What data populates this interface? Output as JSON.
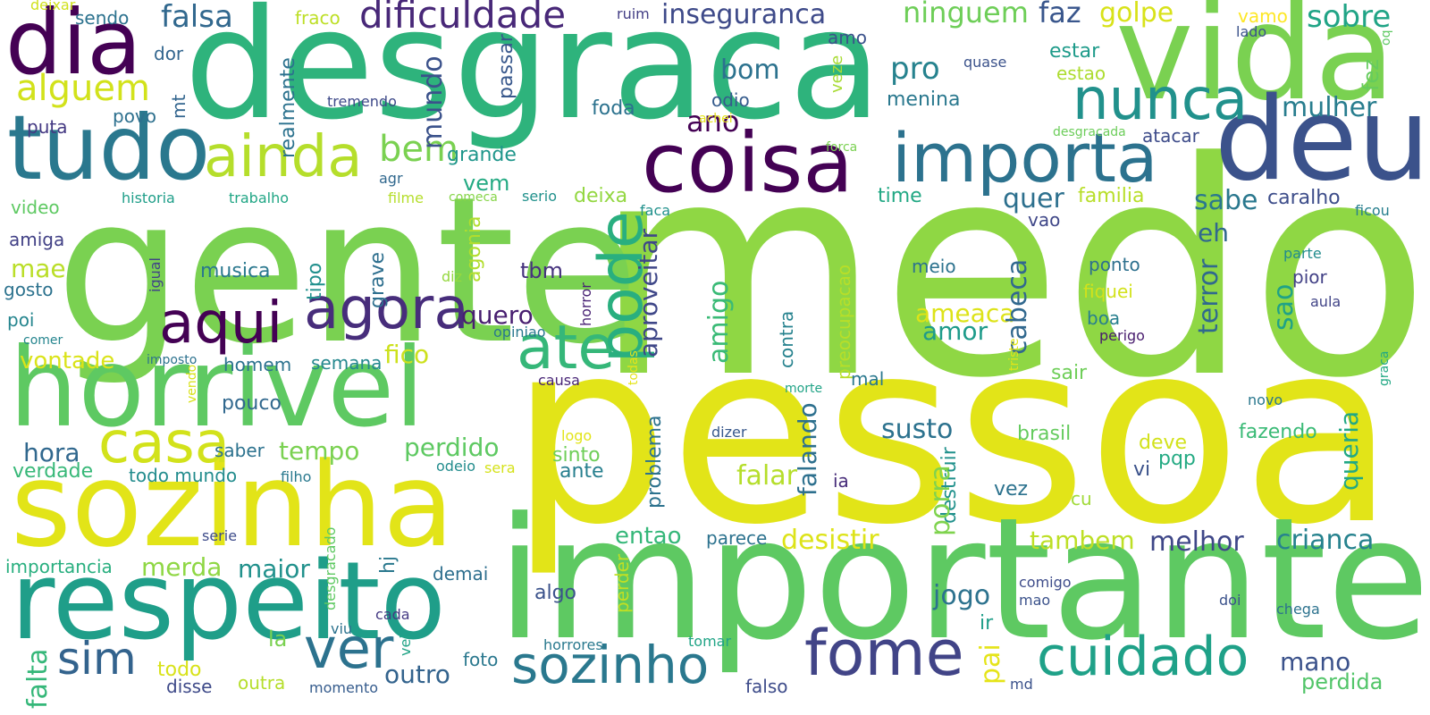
{
  "word_cloud": {
    "words": [
      {
        "text": "desgraca",
        "color": "#2eb37c"
      },
      {
        "text": "medo",
        "color": "#8fd744"
      },
      {
        "text": "pessoa",
        "color": "#e2e418"
      },
      {
        "text": "gente",
        "color": "#7ad151"
      },
      {
        "text": "importante",
        "color": "#5ec962"
      },
      {
        "text": "vida",
        "color": "#7ad151"
      },
      {
        "text": "dia",
        "color": "#440154"
      },
      {
        "text": "deu",
        "color": "#3b528b"
      },
      {
        "text": "horrivel",
        "color": "#5ec962"
      },
      {
        "text": "sozinha",
        "color": "#e2e418"
      },
      {
        "text": "respeito",
        "color": "#1f9e89"
      },
      {
        "text": "tudo",
        "color": "#2a788e"
      },
      {
        "text": "coisa",
        "color": "#440154"
      },
      {
        "text": "importa",
        "color": "#2c728e"
      },
      {
        "text": "nunca",
        "color": "#21918c"
      },
      {
        "text": "ainda",
        "color": "#b5de2b"
      },
      {
        "text": "agora",
        "color": "#472d7b"
      },
      {
        "text": "aqui",
        "color": "#440154"
      },
      {
        "text": "casa",
        "color": "#d2e21b"
      },
      {
        "text": "ate",
        "color": "#35b779"
      },
      {
        "text": "pode",
        "color": "#29af7f"
      },
      {
        "text": "fome",
        "color": "#414487"
      },
      {
        "text": "cuidado",
        "color": "#1fa188"
      },
      {
        "text": "sozinho",
        "color": "#2a788e"
      },
      {
        "text": "ver",
        "color": "#2c728e"
      },
      {
        "text": "sim",
        "color": "#33638d"
      },
      {
        "text": "dificuldade",
        "color": "#482878"
      },
      {
        "text": "inseguranca",
        "color": "#3e4a89"
      },
      {
        "text": "alguem",
        "color": "#d2e21b"
      },
      {
        "text": "bem",
        "color": "#7ad151"
      },
      {
        "text": "falsa",
        "color": "#31688e"
      },
      {
        "text": "ninguem",
        "color": "#6ece58"
      },
      {
        "text": "faz",
        "color": "#39568c"
      },
      {
        "text": "golpe",
        "color": "#d8e219"
      },
      {
        "text": "sobre",
        "color": "#20a486"
      },
      {
        "text": "vamo",
        "color": "#fde725"
      },
      {
        "text": "deixar",
        "color": "#d0e11c"
      },
      {
        "text": "sendo",
        "color": "#2c728e"
      },
      {
        "text": "fraco",
        "color": "#bddf26"
      },
      {
        "text": "ruim",
        "color": "#433e85"
      },
      {
        "text": "lado",
        "color": "#3b528b"
      },
      {
        "text": "oq",
        "color": "#5ec962"
      },
      {
        "text": "mundo",
        "color": "#3b528b"
      },
      {
        "text": "bom",
        "color": "#2c728e"
      },
      {
        "text": "pro",
        "color": "#26828e"
      },
      {
        "text": "ano",
        "color": "#440154"
      },
      {
        "text": "odio",
        "color": "#365c8d"
      },
      {
        "text": "foda",
        "color": "#2c728e"
      },
      {
        "text": "mulher",
        "color": "#287d8e"
      },
      {
        "text": "fez",
        "color": "#65cb5e"
      },
      {
        "text": "estar",
        "color": "#1e9b8a"
      },
      {
        "text": "estao",
        "color": "#addc30"
      },
      {
        "text": "menina",
        "color": "#2a788e"
      },
      {
        "text": "quase",
        "color": "#3b528b"
      },
      {
        "text": "tremendo",
        "color": "#3e4989"
      },
      {
        "text": "dor",
        "color": "#32658e"
      },
      {
        "text": "amo",
        "color": "#3b528b"
      },
      {
        "text": "mt",
        "color": "#32658e"
      },
      {
        "text": "povo",
        "color": "#2d708e"
      },
      {
        "text": "puta",
        "color": "#443983"
      },
      {
        "text": "realmente",
        "color": "#2c728e"
      },
      {
        "text": "passar",
        "color": "#38588c"
      },
      {
        "text": "veze",
        "color": "#a8db34"
      },
      {
        "text": "achei",
        "color": "#e5e419"
      },
      {
        "text": "forca",
        "color": "#7ad151"
      },
      {
        "text": "desgracada",
        "color": "#6ccd5a"
      },
      {
        "text": "atacar",
        "color": "#3e4c8a"
      },
      {
        "text": "grande",
        "color": "#1f968b"
      },
      {
        "text": "vem",
        "color": "#24aa83"
      },
      {
        "text": "deixa",
        "color": "#93d741"
      },
      {
        "text": "quer",
        "color": "#2d708e"
      },
      {
        "text": "sabe",
        "color": "#2a788e"
      },
      {
        "text": "caralho",
        "color": "#3d4d8a"
      },
      {
        "text": "familia",
        "color": "#b8de29"
      },
      {
        "text": "time",
        "color": "#22a884"
      },
      {
        "text": "vao",
        "color": "#3f4788"
      },
      {
        "text": "ficou",
        "color": "#277f8e"
      },
      {
        "text": "video",
        "color": "#5ec962"
      },
      {
        "text": "historia",
        "color": "#1f9e89"
      },
      {
        "text": "trabalho",
        "color": "#21a685"
      },
      {
        "text": "agr",
        "color": "#31688e"
      },
      {
        "text": "filme",
        "color": "#b5de2b"
      },
      {
        "text": "comeca",
        "color": "#86d549"
      },
      {
        "text": "serio",
        "color": "#21918c"
      },
      {
        "text": "faca",
        "color": "#21918c"
      },
      {
        "text": "amiga",
        "color": "#424186"
      },
      {
        "text": "mae",
        "color": "#bade28"
      },
      {
        "text": "gosto",
        "color": "#2c728e"
      },
      {
        "text": "igual",
        "color": "#414487"
      },
      {
        "text": "musica",
        "color": "#2a788e"
      },
      {
        "text": "grave",
        "color": "#2e6f8e"
      },
      {
        "text": "tipo",
        "color": "#21908d"
      },
      {
        "text": "diz",
        "color": "#95d840"
      },
      {
        "text": "agonia",
        "color": "#b2dd2d"
      },
      {
        "text": "tbm",
        "color": "#46337e"
      },
      {
        "text": "quero",
        "color": "#481f70"
      },
      {
        "text": "aproveitar",
        "color": "#3f4788"
      },
      {
        "text": "amigo",
        "color": "#3aba76"
      },
      {
        "text": "eh",
        "color": "#31688e"
      },
      {
        "text": "terror",
        "color": "#30698e"
      },
      {
        "text": "ponto",
        "color": "#2d708e"
      },
      {
        "text": "pior",
        "color": "#424186"
      },
      {
        "text": "parte",
        "color": "#228c8d"
      },
      {
        "text": "meio",
        "color": "#2c728e"
      },
      {
        "text": "fiquei",
        "color": "#d2e21b"
      },
      {
        "text": "sao",
        "color": "#1fa287"
      },
      {
        "text": "aula",
        "color": "#414487"
      },
      {
        "text": "poi",
        "color": "#25858e"
      },
      {
        "text": "comer",
        "color": "#25858e"
      },
      {
        "text": "imposto",
        "color": "#2c728e"
      },
      {
        "text": "opiniao",
        "color": "#2a788e"
      },
      {
        "text": "horror",
        "color": "#482173"
      },
      {
        "text": "contra",
        "color": "#26828e"
      },
      {
        "text": "preocupacao",
        "color": "#b8de29"
      },
      {
        "text": "ameaca",
        "color": "#dde318"
      },
      {
        "text": "amor",
        "color": "#1e9b8a"
      },
      {
        "text": "cabeca",
        "color": "#31688e"
      },
      {
        "text": "boa",
        "color": "#277f8e"
      },
      {
        "text": "perigo",
        "color": "#481c6e"
      },
      {
        "text": "vontade",
        "color": "#dae319"
      },
      {
        "text": "homem",
        "color": "#2c728e"
      },
      {
        "text": "semana",
        "color": "#24878e"
      },
      {
        "text": "fico",
        "color": "#cde11d"
      },
      {
        "text": "vendo",
        "color": "#d8e219"
      },
      {
        "text": "causa",
        "color": "#482576"
      },
      {
        "text": "todas",
        "color": "#e5e419"
      },
      {
        "text": "morte",
        "color": "#20a386"
      },
      {
        "text": "mal",
        "color": "#2a788e"
      },
      {
        "text": "triste",
        "color": "#e2e418"
      },
      {
        "text": "graca",
        "color": "#22a884"
      },
      {
        "text": "novo",
        "color": "#2a788e"
      },
      {
        "text": "hora",
        "color": "#31688e"
      },
      {
        "text": "tempo",
        "color": "#7ad151"
      },
      {
        "text": "saber",
        "color": "#2c728e"
      },
      {
        "text": "perdido",
        "color": "#5ec962"
      },
      {
        "text": "pouco",
        "color": "#31688e"
      },
      {
        "text": "falando",
        "color": "#2d708e"
      },
      {
        "text": "susto",
        "color": "#2c728e"
      },
      {
        "text": "sair",
        "color": "#6ece58"
      },
      {
        "text": "brasil",
        "color": "#65cb5e"
      },
      {
        "text": "deve",
        "color": "#d2e21b"
      },
      {
        "text": "fazendo",
        "color": "#3aba76"
      },
      {
        "text": "queria",
        "color": "#22a884"
      },
      {
        "text": "logo",
        "color": "#e2e418"
      },
      {
        "text": "dizer",
        "color": "#38598c"
      },
      {
        "text": "problema",
        "color": "#2c728e"
      },
      {
        "text": "verdade",
        "color": "#37b878"
      },
      {
        "text": "todo mundo",
        "color": "#228c8d"
      },
      {
        "text": "odeio",
        "color": "#228c8d"
      },
      {
        "text": "sera",
        "color": "#d5e21a"
      },
      {
        "text": "filho",
        "color": "#29798e"
      },
      {
        "text": "sinto",
        "color": "#6ece58"
      },
      {
        "text": "ante",
        "color": "#277f8e"
      },
      {
        "text": "destruir",
        "color": "#21918c"
      },
      {
        "text": "porra",
        "color": "#7fd34e"
      },
      {
        "text": "falar",
        "color": "#b5de2b"
      },
      {
        "text": "ia",
        "color": "#472c7a"
      },
      {
        "text": "vi",
        "color": "#3b528b"
      },
      {
        "text": "pqp",
        "color": "#24aa83"
      },
      {
        "text": "vez",
        "color": "#2c728e"
      },
      {
        "text": "cu",
        "color": "#a0da39"
      },
      {
        "text": "entao",
        "color": "#35b779"
      },
      {
        "text": "desistir",
        "color": "#dde318"
      },
      {
        "text": "parece",
        "color": "#2c728e"
      },
      {
        "text": "tambem",
        "color": "#bddf26"
      },
      {
        "text": "melhor",
        "color": "#3f4788"
      },
      {
        "text": "crianca",
        "color": "#26828e"
      },
      {
        "text": "serie",
        "color": "#3e4c8a"
      },
      {
        "text": "desgracado",
        "color": "#5ec962"
      },
      {
        "text": "importancia",
        "color": "#29af7f"
      },
      {
        "text": "merda",
        "color": "#8fd744"
      },
      {
        "text": "maior",
        "color": "#21918c"
      },
      {
        "text": "hj",
        "color": "#2a788e"
      },
      {
        "text": "demai",
        "color": "#2e6f8e"
      },
      {
        "text": "algo",
        "color": "#3b528b"
      },
      {
        "text": "perder",
        "color": "#c2df23"
      },
      {
        "text": "jogo",
        "color": "#2c728e"
      },
      {
        "text": "pai",
        "color": "#e5e419"
      },
      {
        "text": "ir",
        "color": "#1f9e89"
      },
      {
        "text": "comigo",
        "color": "#3e4c8a"
      },
      {
        "text": "mao",
        "color": "#3b528b"
      },
      {
        "text": "doi",
        "color": "#3b528b"
      },
      {
        "text": "chega",
        "color": "#2c728e"
      },
      {
        "text": "falta",
        "color": "#35b779"
      },
      {
        "text": "la",
        "color": "#7ad151"
      },
      {
        "text": "outro",
        "color": "#33638d"
      },
      {
        "text": "cada",
        "color": "#443983"
      },
      {
        "text": "viu",
        "color": "#2c728e"
      },
      {
        "text": "vei",
        "color": "#20a386"
      },
      {
        "text": "horrores",
        "color": "#29798e"
      },
      {
        "text": "foto",
        "color": "#2a788e"
      },
      {
        "text": "tomar",
        "color": "#20a486"
      },
      {
        "text": "mano",
        "color": "#3b528b"
      },
      {
        "text": "perdida",
        "color": "#52c569"
      },
      {
        "text": "todo",
        "color": "#d8e219"
      },
      {
        "text": "disse",
        "color": "#3e4a89"
      },
      {
        "text": "outra",
        "color": "#b5de2b"
      },
      {
        "text": "momento",
        "color": "#365c8d"
      },
      {
        "text": "falso",
        "color": "#3e4c8a"
      },
      {
        "text": "md",
        "color": "#3b528b"
      }
    ]
  }
}
